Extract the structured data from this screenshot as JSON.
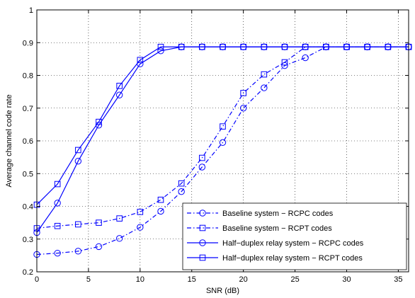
{
  "chart_data": {
    "type": "line",
    "xlabel": "SNR (dB)",
    "ylabel": "Average channel code rate",
    "xlim": [
      0,
      36
    ],
    "ylim": [
      0.2,
      1
    ],
    "xticks": [
      0,
      5,
      10,
      15,
      20,
      25,
      30,
      35
    ],
    "yticks": [
      0.2,
      0.3,
      0.4,
      0.5,
      0.6,
      0.7,
      0.8,
      0.9,
      1
    ],
    "grid": true,
    "legend_position": "bottom-right",
    "series": [
      {
        "name": "Baseline system − RCPC codes",
        "line_style": "dash-dot",
        "marker": "circle",
        "color": "#0000ff",
        "x": [
          0,
          2,
          4,
          6,
          8,
          10,
          12,
          14,
          16,
          18,
          20,
          22,
          24,
          26,
          28,
          30,
          32,
          34,
          36
        ],
        "y": [
          0.253,
          0.257,
          0.263,
          0.277,
          0.302,
          0.336,
          0.385,
          0.445,
          0.52,
          0.595,
          0.7,
          0.762,
          0.83,
          0.854,
          0.887,
          0.887,
          0.887,
          0.887,
          0.887
        ]
      },
      {
        "name": "Baseline system − RCPT codes",
        "line_style": "dash-dot",
        "marker": "square",
        "color": "#0000ff",
        "x": [
          0,
          2,
          4,
          6,
          8,
          10,
          12,
          14,
          16,
          18,
          20,
          22,
          24,
          26,
          28,
          30,
          32,
          34,
          36
        ],
        "y": [
          0.333,
          0.34,
          0.345,
          0.35,
          0.363,
          0.383,
          0.42,
          0.47,
          0.548,
          0.644,
          0.746,
          0.803,
          0.84,
          0.887,
          0.887,
          0.887,
          0.887,
          0.887,
          0.887
        ]
      },
      {
        "name": "Half−duplex relay system − RCPC codes",
        "line_style": "solid",
        "marker": "circle",
        "color": "#0000ff",
        "x": [
          0,
          2,
          4,
          6,
          8,
          10,
          12,
          14,
          16,
          18,
          20,
          22,
          24,
          26,
          28,
          30,
          32,
          34,
          36
        ],
        "y": [
          0.32,
          0.41,
          0.538,
          0.648,
          0.74,
          0.835,
          0.875,
          0.887,
          0.887,
          0.887,
          0.887,
          0.887,
          0.887,
          0.887,
          0.887,
          0.887,
          0.887,
          0.887,
          0.887
        ]
      },
      {
        "name": "Half−duplex relay system − RCPT codes",
        "line_style": "solid",
        "marker": "square",
        "color": "#0000ff",
        "x": [
          0,
          2,
          4,
          6,
          8,
          10,
          12,
          14,
          16,
          18,
          20,
          22,
          24,
          26,
          28,
          30,
          32,
          34,
          36
        ],
        "y": [
          0.405,
          0.468,
          0.572,
          0.658,
          0.768,
          0.847,
          0.887,
          0.887,
          0.887,
          0.887,
          0.887,
          0.887,
          0.887,
          0.887,
          0.887,
          0.887,
          0.887,
          0.887,
          0.887
        ]
      }
    ]
  }
}
